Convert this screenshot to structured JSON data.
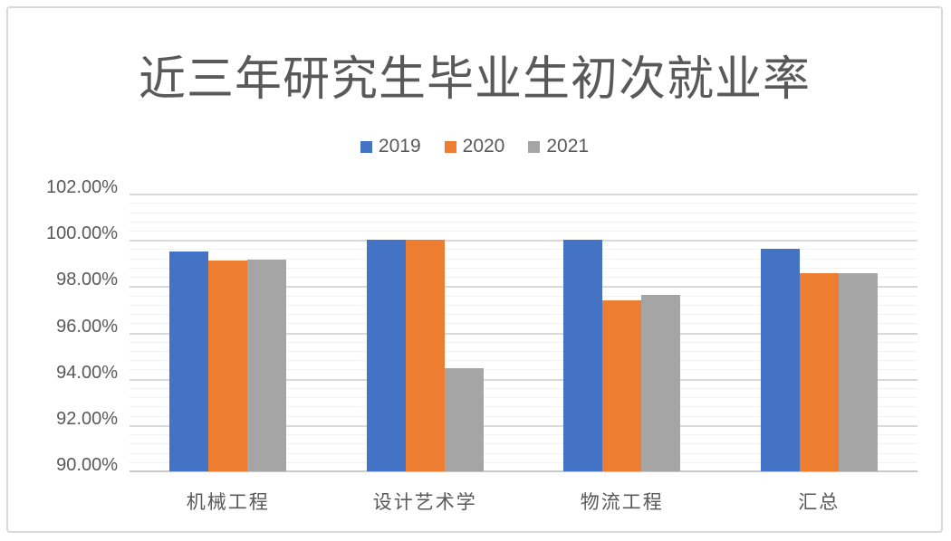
{
  "chart_data": {
    "type": "bar",
    "title": "近三年研究生毕业生初次就业率",
    "categories": [
      "机械工程",
      "设计艺术学",
      "物流工程",
      "汇总"
    ],
    "series": [
      {
        "name": "2019",
        "color": "#4472C4",
        "values": [
          99.5,
          100.0,
          100.0,
          99.6
        ]
      },
      {
        "name": "2020",
        "color": "#ED7D31",
        "values": [
          99.1,
          100.0,
          97.37,
          98.57
        ]
      },
      {
        "name": "2021",
        "color": "#A5A5A5",
        "values": [
          99.13,
          94.44,
          97.62,
          98.57
        ]
      }
    ],
    "ylabel": "",
    "xlabel": "",
    "ylim": [
      90,
      102
    ],
    "y_major_unit": 2,
    "y_minor_unit": 0.4,
    "y_ticks": [
      "102.00%",
      "100.00%",
      "98.00%",
      "96.00%",
      "94.00%",
      "92.00%",
      "90.00%"
    ],
    "legend_position": "top",
    "grid": true
  },
  "colors": {
    "title_text": "#595959",
    "axis_text": "#595959",
    "major_gridline": "#d9d9d9",
    "minor_gridline": "#f2f2f2",
    "axis_line": "#c9c9c9",
    "frame_border": "#d9d9d9",
    "background": "#ffffff"
  }
}
